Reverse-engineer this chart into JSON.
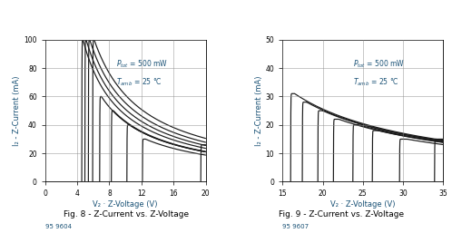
{
  "fig8": {
    "title": "Fig. 8 - Z-Current vs. Z-Voltage",
    "xlabel": "V₂ · Z-Voltage (V)",
    "ylabel": "I₂ - Z-Current (mA)",
    "xlim": [
      0,
      20
    ],
    "ylim": [
      0,
      100
    ],
    "xticks": [
      0,
      4,
      8,
      12,
      16,
      20
    ],
    "yticks": [
      0,
      20,
      40,
      60,
      80,
      100
    ],
    "code": "95 9604",
    "curve_vz_knees": [
      4.7,
      5.1,
      5.55,
      6.1,
      7.0,
      8.5,
      10.5,
      12.5,
      20.0
    ],
    "curve_iz_max": [
      100,
      100,
      100,
      100,
      60,
      50,
      40,
      30,
      26
    ]
  },
  "fig9": {
    "title": "Fig. 9 - Z-Current vs. Z-Voltage",
    "xlabel": "V₂ · Z-Voltage (V)",
    "ylabel": "I₂ - Z-Current (mA)",
    "xlim": [
      15,
      35
    ],
    "ylim": [
      0,
      50
    ],
    "xticks": [
      15,
      20,
      25,
      30,
      35
    ],
    "yticks": [
      0,
      10,
      20,
      30,
      40,
      50
    ],
    "code": "95 9607",
    "curve_vz_knees": [
      16.5,
      18.0,
      20.0,
      22.0,
      24.5,
      27.0,
      30.5,
      35.0
    ],
    "curve_iz_max": [
      31,
      28,
      25,
      22,
      20,
      18,
      15,
      15
    ]
  },
  "line_color": "#1a1a1a",
  "text_color": "#1a5276",
  "label_color": "#1a5276",
  "caption_color": "#000000",
  "background": "#ffffff",
  "grid_color": "#888888"
}
